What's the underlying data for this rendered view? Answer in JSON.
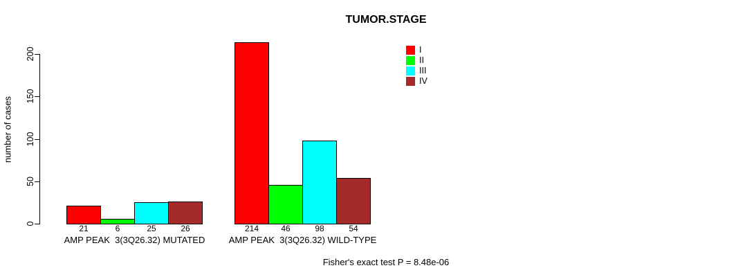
{
  "chart_data": {
    "type": "bar",
    "title": "TUMOR.STAGE",
    "ylabel": "number of cases",
    "xlabel": "",
    "ylim": [
      0,
      200
    ],
    "yticks": [
      0,
      50,
      100,
      150,
      200
    ],
    "grid": false,
    "legend_position": "top-right",
    "categories": [
      "AMP PEAK  3(3Q26.32) MUTATED",
      "AMP PEAK  3(3Q26.32) WILD-TYPE"
    ],
    "series": [
      {
        "name": "I",
        "color": "#ff0000",
        "values": [
          21,
          214
        ]
      },
      {
        "name": "II",
        "color": "#00ff00",
        "values": [
          6,
          46
        ]
      },
      {
        "name": "III",
        "color": "#00ffff",
        "values": [
          25,
          98
        ]
      },
      {
        "name": "IV",
        "color": "#a52a2a",
        "values": [
          26,
          54
        ]
      }
    ],
    "footnote": "Fisher's exact test P = 8.48e-06"
  }
}
